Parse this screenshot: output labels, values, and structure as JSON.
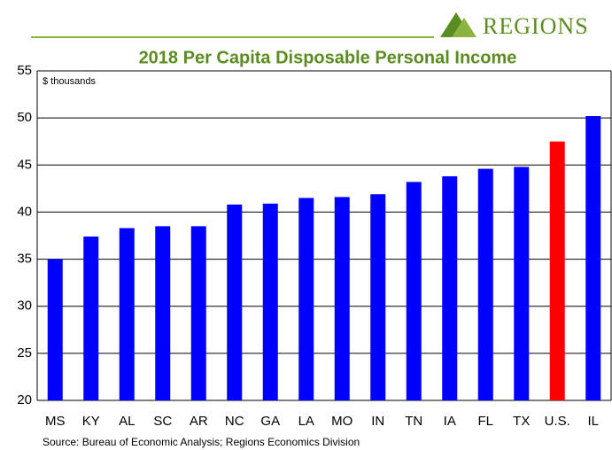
{
  "chart_data": {
    "type": "bar",
    "title": "2018 Per Capita Disposable Personal Income",
    "logo": "REGIONS",
    "y_axis_label": "$ thousands",
    "source": "Source: Bureau of Economic Analysis; Regions Economics Division",
    "categories": [
      "MS",
      "KY",
      "AL",
      "SC",
      "AR",
      "NC",
      "GA",
      "LA",
      "MO",
      "IN",
      "TN",
      "IA",
      "FL",
      "TX",
      "U.S.",
      "IL"
    ],
    "values": [
      35.0,
      37.4,
      38.3,
      38.5,
      38.5,
      40.8,
      40.9,
      41.5,
      41.6,
      41.9,
      43.2,
      43.8,
      44.6,
      44.8,
      47.5,
      50.2
    ],
    "colors": [
      "#0000ff",
      "#0000ff",
      "#0000ff",
      "#0000ff",
      "#0000ff",
      "#0000ff",
      "#0000ff",
      "#0000ff",
      "#0000ff",
      "#0000ff",
      "#0000ff",
      "#0000ff",
      "#0000ff",
      "#0000ff",
      "#ff0000",
      "#0000ff"
    ],
    "ylim": [
      20,
      55
    ],
    "yticks": [
      20,
      25,
      30,
      35,
      40,
      45,
      50,
      55
    ],
    "grid": true
  }
}
